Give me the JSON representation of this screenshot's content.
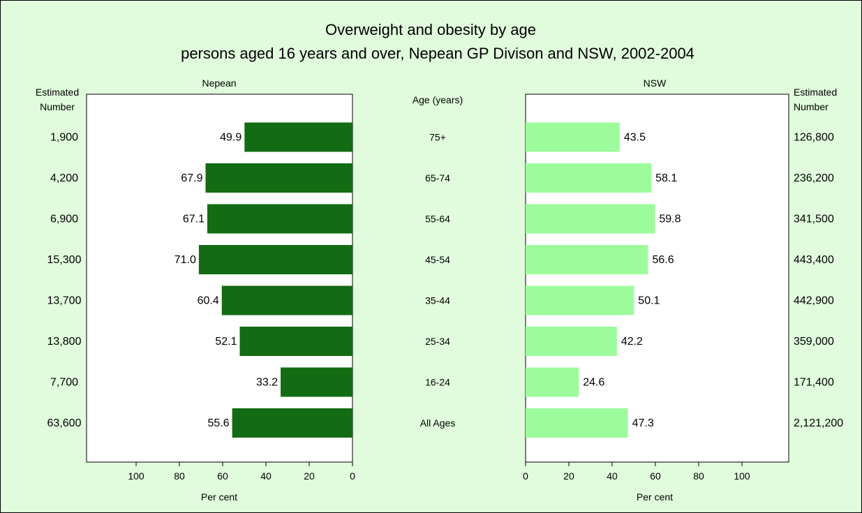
{
  "chart_data": {
    "type": "bar",
    "title": "Overweight and obesity by age",
    "subtitle": "persons aged 16 years and over, Nepean GP Divison and NSW, 2002-2004",
    "category_header": "Age (years)",
    "categories": [
      "75+",
      "65-74",
      "55-64",
      "45-54",
      "35-44",
      "25-34",
      "16-24",
      "All Ages"
    ],
    "estimated_number_label": [
      "Estimated",
      "Number"
    ],
    "xlabel": "Per cent",
    "xlim": [
      0,
      120
    ],
    "xticks": [
      "0",
      "20",
      "40",
      "60",
      "80",
      "100"
    ],
    "grid": false,
    "series": [
      {
        "name": "Nepean",
        "values": [
          49.9,
          67.9,
          67.1,
          71.0,
          60.4,
          52.1,
          33.2,
          55.6
        ],
        "value_labels": [
          "49.9",
          "67.9",
          "67.1",
          "71.0",
          "60.4",
          "52.1",
          "33.2",
          "55.6"
        ],
        "estimated_numbers": [
          "1,900",
          "4,200",
          "6,900",
          "15,300",
          "13,700",
          "13,800",
          "7,700",
          "63,600"
        ],
        "color": "#136b13"
      },
      {
        "name": "NSW",
        "values": [
          43.5,
          58.1,
          59.8,
          56.6,
          50.1,
          42.2,
          24.6,
          47.3
        ],
        "value_labels": [
          "43.5",
          "58.1",
          "59.8",
          "56.6",
          "50.1",
          "42.2",
          "24.6",
          "47.3"
        ],
        "estimated_numbers": [
          "126,800",
          "236,200",
          "341,500",
          "443,400",
          "442,900",
          "359,000",
          "171,400",
          "2,121,200"
        ],
        "color": "#9cfc9c"
      }
    ],
    "colors": {
      "background": "#e0fcdc",
      "plot_background": "#ffffff"
    }
  }
}
